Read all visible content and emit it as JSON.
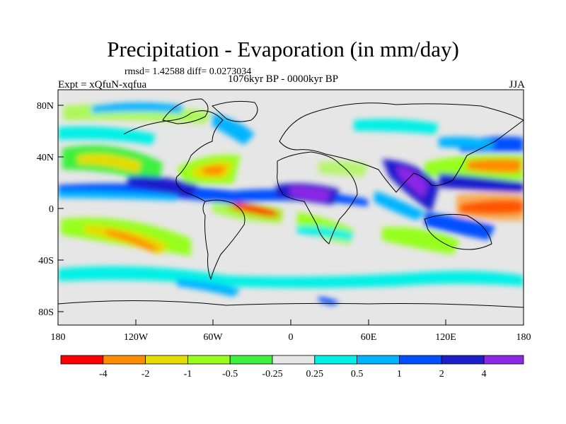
{
  "title": "Precipitation - Evaporation (in mm/day)",
  "stats": "rmsd= 1.42588 diff= 0.0273034",
  "period": "1076kyr BP - 0000kyr BP",
  "experiment": "Expt = xQfuN-xqfua",
  "season": "JJA",
  "axes": {
    "lat_ticks": [
      "80N",
      "40N",
      "0",
      "40S",
      "80S"
    ],
    "lon_ticks": [
      "180",
      "120W",
      "60W",
      "0",
      "60E",
      "120E",
      "180"
    ]
  },
  "colorbar": {
    "colors": [
      "#ff0000",
      "#ff8c00",
      "#e6dc00",
      "#96ff1e",
      "#3cf03c",
      "#e6e6e6",
      "#00f0e6",
      "#00b4ff",
      "#0050ff",
      "#1e1ecd",
      "#8c28e6"
    ],
    "labels": [
      "-4",
      "-2",
      "-1",
      "-0.5",
      "-0.25",
      "0.25",
      "0.5",
      "1",
      "2",
      "4"
    ]
  }
}
